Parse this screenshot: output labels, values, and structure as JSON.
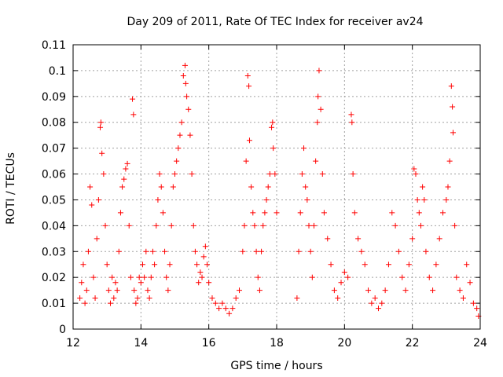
{
  "chart_data": {
    "type": "scatter",
    "title": "Day 209 of 2011, Rate Of TEC Index for receiver av24",
    "xlabel": "GPS time / hours",
    "ylabel": "ROTI / TECUs",
    "xlim": [
      12,
      24
    ],
    "ylim": [
      0,
      0.11
    ],
    "xticks": [
      12,
      14,
      16,
      18,
      20,
      22,
      24
    ],
    "yticks": [
      0,
      0.01,
      0.02,
      0.03,
      0.04,
      0.05,
      0.06,
      0.07,
      0.08,
      0.09,
      0.1,
      0.11
    ],
    "xtick_labels": [
      "12",
      "14",
      "16",
      "18",
      "20",
      "22",
      "24"
    ],
    "ytick_labels": [
      "0",
      "0.01",
      "0.02",
      "0.03",
      "0.04",
      "0.05",
      "0.06",
      "0.07",
      "0.08",
      "0.09",
      "0.1",
      "0.11"
    ],
    "grid": true,
    "marker": "+",
    "color": "#ff0000",
    "series": [
      {
        "points": [
          [
            12.2,
            0.012
          ],
          [
            12.25,
            0.018
          ],
          [
            12.3,
            0.025
          ],
          [
            12.35,
            0.01
          ],
          [
            12.4,
            0.015
          ],
          [
            12.45,
            0.03
          ],
          [
            12.5,
            0.055
          ],
          [
            12.55,
            0.048
          ],
          [
            12.6,
            0.02
          ],
          [
            12.65,
            0.012
          ],
          [
            12.7,
            0.035
          ],
          [
            12.75,
            0.05
          ],
          [
            12.8,
            0.078
          ],
          [
            12.82,
            0.08
          ],
          [
            12.85,
            0.068
          ],
          [
            12.9,
            0.06
          ],
          [
            12.95,
            0.04
          ],
          [
            13.0,
            0.025
          ],
          [
            13.05,
            0.015
          ],
          [
            13.1,
            0.01
          ],
          [
            13.15,
            0.02
          ],
          [
            13.2,
            0.012
          ],
          [
            13.25,
            0.018
          ],
          [
            13.3,
            0.015
          ],
          [
            13.35,
            0.03
          ],
          [
            13.4,
            0.045
          ],
          [
            13.45,
            0.055
          ],
          [
            13.5,
            0.058
          ],
          [
            13.55,
            0.062
          ],
          [
            13.6,
            0.064
          ],
          [
            13.65,
            0.04
          ],
          [
            13.7,
            0.02
          ],
          [
            13.75,
            0.089
          ],
          [
            13.78,
            0.083
          ],
          [
            13.8,
            0.015
          ],
          [
            13.85,
            0.01
          ],
          [
            13.9,
            0.012
          ],
          [
            13.95,
            0.02
          ],
          [
            14.0,
            0.018
          ],
          [
            14.05,
            0.025
          ],
          [
            14.1,
            0.02
          ],
          [
            14.15,
            0.03
          ],
          [
            14.2,
            0.015
          ],
          [
            14.25,
            0.012
          ],
          [
            14.3,
            0.02
          ],
          [
            14.35,
            0.03
          ],
          [
            14.4,
            0.025
          ],
          [
            14.45,
            0.04
          ],
          [
            14.5,
            0.05
          ],
          [
            14.55,
            0.06
          ],
          [
            14.6,
            0.055
          ],
          [
            14.65,
            0.045
          ],
          [
            14.7,
            0.03
          ],
          [
            14.75,
            0.02
          ],
          [
            14.8,
            0.015
          ],
          [
            14.85,
            0.025
          ],
          [
            14.9,
            0.04
          ],
          [
            14.95,
            0.055
          ],
          [
            15.0,
            0.06
          ],
          [
            15.05,
            0.065
          ],
          [
            15.1,
            0.07
          ],
          [
            15.15,
            0.075
          ],
          [
            15.2,
            0.08
          ],
          [
            15.25,
            0.098
          ],
          [
            15.3,
            0.102
          ],
          [
            15.32,
            0.095
          ],
          [
            15.35,
            0.09
          ],
          [
            15.4,
            0.085
          ],
          [
            15.45,
            0.075
          ],
          [
            15.5,
            0.06
          ],
          [
            15.55,
            0.04
          ],
          [
            15.6,
            0.03
          ],
          [
            15.65,
            0.025
          ],
          [
            15.7,
            0.018
          ],
          [
            15.75,
            0.022
          ],
          [
            15.8,
            0.02
          ],
          [
            15.85,
            0.028
          ],
          [
            15.9,
            0.032
          ],
          [
            15.95,
            0.025
          ],
          [
            16.0,
            0.018
          ],
          [
            16.1,
            0.012
          ],
          [
            16.2,
            0.01
          ],
          [
            16.3,
            0.008
          ],
          [
            16.4,
            0.01
          ],
          [
            16.5,
            0.008
          ],
          [
            16.6,
            0.006
          ],
          [
            16.7,
            0.008
          ],
          [
            16.8,
            0.012
          ],
          [
            16.9,
            0.015
          ],
          [
            17.0,
            0.03
          ],
          [
            17.05,
            0.04
          ],
          [
            17.1,
            0.065
          ],
          [
            17.15,
            0.098
          ],
          [
            17.18,
            0.094
          ],
          [
            17.2,
            0.073
          ],
          [
            17.25,
            0.055
          ],
          [
            17.3,
            0.045
          ],
          [
            17.35,
            0.04
          ],
          [
            17.4,
            0.03
          ],
          [
            17.45,
            0.02
          ],
          [
            17.5,
            0.015
          ],
          [
            17.55,
            0.03
          ],
          [
            17.6,
            0.04
          ],
          [
            17.65,
            0.045
          ],
          [
            17.7,
            0.05
          ],
          [
            17.75,
            0.055
          ],
          [
            17.8,
            0.06
          ],
          [
            17.85,
            0.078
          ],
          [
            17.88,
            0.08
          ],
          [
            17.9,
            0.07
          ],
          [
            17.95,
            0.06
          ],
          [
            18.0,
            0.045
          ],
          [
            18.6,
            0.012
          ],
          [
            18.65,
            0.03
          ],
          [
            18.7,
            0.045
          ],
          [
            18.75,
            0.06
          ],
          [
            18.8,
            0.07
          ],
          [
            18.85,
            0.055
          ],
          [
            18.9,
            0.05
          ],
          [
            18.95,
            0.04
          ],
          [
            19.0,
            0.03
          ],
          [
            19.05,
            0.02
          ],
          [
            19.1,
            0.04
          ],
          [
            19.15,
            0.065
          ],
          [
            19.2,
            0.08
          ],
          [
            19.22,
            0.09
          ],
          [
            19.25,
            0.1
          ],
          [
            19.3,
            0.085
          ],
          [
            19.35,
            0.06
          ],
          [
            19.4,
            0.045
          ],
          [
            19.5,
            0.035
          ],
          [
            19.6,
            0.025
          ],
          [
            19.7,
            0.015
          ],
          [
            19.8,
            0.012
          ],
          [
            19.9,
            0.018
          ],
          [
            20.0,
            0.022
          ],
          [
            20.1,
            0.02
          ],
          [
            20.2,
            0.083
          ],
          [
            20.22,
            0.08
          ],
          [
            20.25,
            0.06
          ],
          [
            20.3,
            0.045
          ],
          [
            20.4,
            0.035
          ],
          [
            20.5,
            0.03
          ],
          [
            20.6,
            0.025
          ],
          [
            20.7,
            0.015
          ],
          [
            20.8,
            0.01
          ],
          [
            20.9,
            0.012
          ],
          [
            21.0,
            0.008
          ],
          [
            21.1,
            0.01
          ],
          [
            21.2,
            0.015
          ],
          [
            21.3,
            0.025
          ],
          [
            21.4,
            0.045
          ],
          [
            21.5,
            0.04
          ],
          [
            21.6,
            0.03
          ],
          [
            21.7,
            0.02
          ],
          [
            21.8,
            0.015
          ],
          [
            21.9,
            0.025
          ],
          [
            22.0,
            0.035
          ],
          [
            22.05,
            0.062
          ],
          [
            22.1,
            0.06
          ],
          [
            22.15,
            0.05
          ],
          [
            22.2,
            0.045
          ],
          [
            22.25,
            0.04
          ],
          [
            22.3,
            0.055
          ],
          [
            22.35,
            0.05
          ],
          [
            22.4,
            0.03
          ],
          [
            22.5,
            0.02
          ],
          [
            22.6,
            0.015
          ],
          [
            22.7,
            0.025
          ],
          [
            22.8,
            0.035
          ],
          [
            22.9,
            0.045
          ],
          [
            23.0,
            0.05
          ],
          [
            23.05,
            0.055
          ],
          [
            23.1,
            0.065
          ],
          [
            23.15,
            0.094
          ],
          [
            23.18,
            0.086
          ],
          [
            23.2,
            0.076
          ],
          [
            23.25,
            0.04
          ],
          [
            23.3,
            0.02
          ],
          [
            23.4,
            0.015
          ],
          [
            23.5,
            0.012
          ],
          [
            23.6,
            0.025
          ],
          [
            23.7,
            0.018
          ],
          [
            23.8,
            0.01
          ],
          [
            23.9,
            0.008
          ],
          [
            23.95,
            0.005
          ]
        ]
      }
    ]
  }
}
